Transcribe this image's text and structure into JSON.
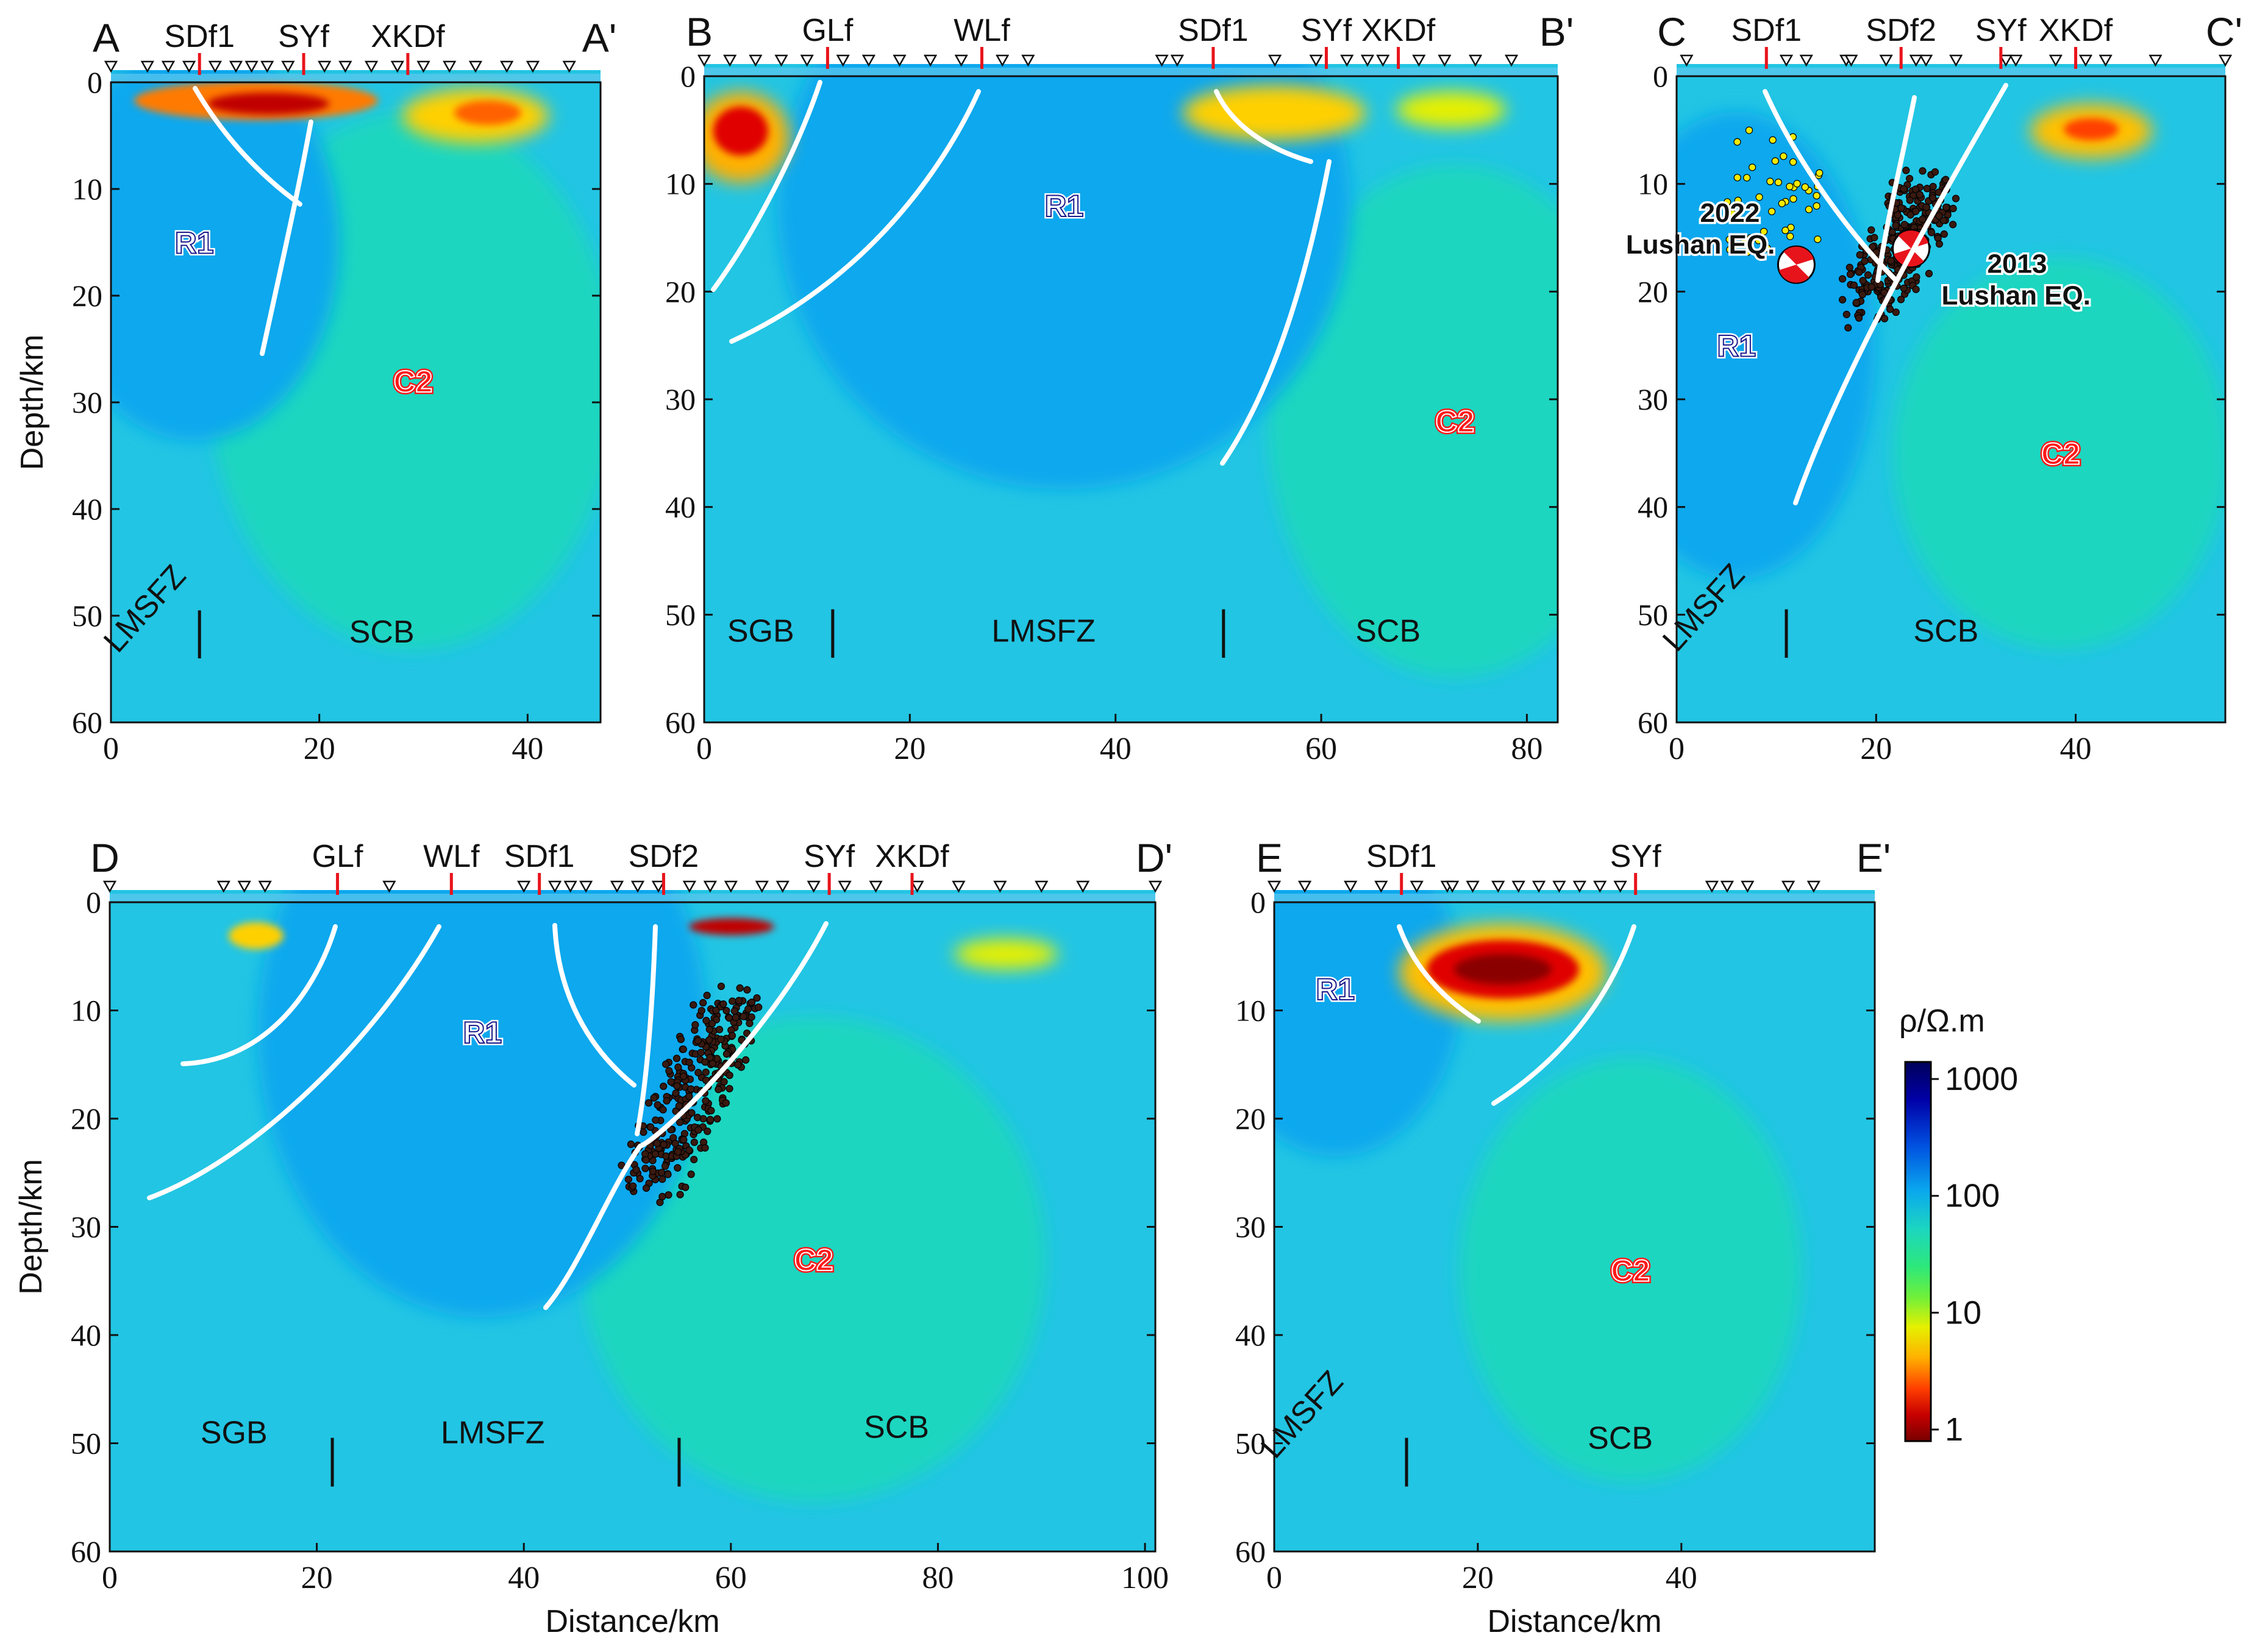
{
  "chart_data": [
    {
      "type": "heatmap",
      "title": "",
      "profile": {
        "start": "A",
        "end": "A'"
      },
      "xlim": [
        0,
        47
      ],
      "ylim": [
        60,
        0
      ],
      "xticks": [
        0,
        20,
        40
      ],
      "yticks": [
        0,
        10,
        20,
        30,
        40,
        50,
        60
      ],
      "ylabel": "Depth/km",
      "xlabel": "",
      "faults": [
        {
          "label": "SDf1",
          "x": 8.5
        },
        {
          "label": "SYf",
          "x": 18.5
        },
        {
          "label": "XKDf",
          "x": 28.5
        }
      ],
      "station_x": [
        0,
        3.5,
        5.5,
        7.5,
        10,
        12,
        13.5,
        15,
        17,
        20.5,
        22.5,
        25,
        27.5,
        30,
        32.5,
        35,
        38,
        40.5,
        44
      ],
      "anomalies": [
        {
          "label": "R1",
          "x": 8,
          "depth": 15,
          "kind": "resistive",
          "rx": 9,
          "ry": 12
        },
        {
          "label": "C2",
          "x": 29,
          "depth": 28,
          "kind": "conductive",
          "rx": 14,
          "ry": 18
        }
      ],
      "zones": [
        {
          "label": "LMSFZ",
          "x": 4,
          "depth": 50,
          "rotated": true
        },
        {
          "label": "SCB",
          "x": 26,
          "depth": 52.5
        }
      ],
      "zone_boundaries": [
        8.5
      ],
      "seismicity": [],
      "focal_mechanisms": []
    },
    {
      "type": "heatmap",
      "title": "",
      "profile": {
        "start": "B",
        "end": "B'"
      },
      "xlim": [
        0,
        83
      ],
      "ylim": [
        60,
        0
      ],
      "xticks": [
        0,
        20,
        40,
        60,
        80
      ],
      "yticks": [
        0,
        10,
        20,
        30,
        40,
        50,
        60
      ],
      "ylabel": "",
      "xlabel": "",
      "faults": [
        {
          "label": "GLf",
          "x": 12
        },
        {
          "label": "WLf",
          "x": 27
        },
        {
          "label": "SDf1",
          "x": 49.5
        },
        {
          "label": "SYf",
          "x": 60.5
        },
        {
          "label": "XKDf",
          "x": 67.5
        }
      ],
      "station_x": [
        0,
        2.5,
        5,
        7.5,
        10,
        13.5,
        16,
        19,
        22,
        25,
        29,
        31.5,
        44.5,
        46,
        55.5,
        59.5,
        62.5,
        64.5,
        66,
        69.5,
        72,
        75,
        78.5
      ],
      "anomalies": [
        {
          "label": "R1",
          "x": 35,
          "depth": 12,
          "kind": "resistive",
          "rx": 18,
          "ry": 17
        },
        {
          "label": "C2",
          "x": 73,
          "depth": 32,
          "kind": "conductive",
          "rx": 13,
          "ry": 17
        }
      ],
      "zones": [
        {
          "label": "SGB",
          "x": 5.5,
          "depth": 52.5
        },
        {
          "label": "LMSFZ",
          "x": 33,
          "depth": 52.5
        },
        {
          "label": "SCB",
          "x": 66.5,
          "depth": 52.5
        }
      ],
      "zone_boundaries": [
        12.5,
        50.5
      ],
      "seismicity": [],
      "focal_mechanisms": []
    },
    {
      "type": "heatmap",
      "title": "",
      "profile": {
        "start": "C",
        "end": "C'"
      },
      "xlim": [
        0,
        55
      ],
      "ylim": [
        60,
        0
      ],
      "xticks": [
        0,
        20,
        40
      ],
      "yticks": [
        0,
        10,
        20,
        30,
        40,
        50,
        60
      ],
      "ylabel": "",
      "xlabel": "",
      "faults": [
        {
          "label": "SDf1",
          "x": 9
        },
        {
          "label": "SDf2",
          "x": 22.5
        },
        {
          "label": "SYf",
          "x": 32.5
        },
        {
          "label": "XKDf",
          "x": 40
        }
      ],
      "station_x": [
        1,
        11,
        13,
        17,
        17.5,
        21,
        24,
        25,
        28,
        33,
        34,
        38,
        41,
        43,
        48,
        55
      ],
      "anomalies": [
        {
          "label": "R1",
          "x": 6,
          "depth": 25,
          "kind": "resistive",
          "rx": 9,
          "ry": 14
        },
        {
          "label": "C2",
          "x": 38.5,
          "depth": 35,
          "kind": "conductive",
          "rx": 12,
          "ry": 13
        }
      ],
      "zones": [
        {
          "label": "LMSFZ",
          "x": 3.5,
          "depth": 50,
          "rotated": true
        },
        {
          "label": "SCB",
          "x": 27,
          "depth": 52.5
        }
      ],
      "zone_boundaries": [
        11
      ],
      "seismicity": [
        {
          "cluster": "2013",
          "x_range": [
            15,
            28
          ],
          "depth_range": [
            8,
            21
          ]
        },
        {
          "cluster": "2022",
          "x_range": [
            5,
            15
          ],
          "depth_range": [
            5,
            17
          ]
        }
      ],
      "focal_mechanisms": [
        {
          "label": "2022 Lushan EQ.",
          "x": 12,
          "depth": 17.5
        },
        {
          "label": "2013 Lushan EQ.",
          "x": 23.5,
          "depth": 16
        }
      ]
    },
    {
      "type": "heatmap",
      "title": "",
      "profile": {
        "start": "D",
        "end": "D'"
      },
      "xlim": [
        0,
        101
      ],
      "ylim": [
        60,
        0
      ],
      "xticks": [
        0,
        20,
        40,
        60,
        80,
        100
      ],
      "yticks": [
        0,
        10,
        20,
        30,
        40,
        50,
        60
      ],
      "ylabel": "Depth/km",
      "xlabel": "Distance/km",
      "faults": [
        {
          "label": "GLf",
          "x": 22
        },
        {
          "label": "WLf",
          "x": 33
        },
        {
          "label": "SDf1",
          "x": 41.5
        },
        {
          "label": "SDf2",
          "x": 53.5
        },
        {
          "label": "SYf",
          "x": 69.5
        },
        {
          "label": "XKDf",
          "x": 77.5
        }
      ],
      "station_x": [
        0,
        11,
        13,
        15,
        27,
        40,
        43,
        44.5,
        46,
        49,
        51,
        53,
        56,
        58,
        60,
        63,
        65,
        68,
        71,
        74,
        78,
        82,
        86,
        90,
        94,
        101
      ],
      "anomalies": [
        {
          "label": "R1",
          "x": 36,
          "depth": 12,
          "kind": "resistive",
          "rx": 14,
          "ry": 17
        },
        {
          "label": "C2",
          "x": 68,
          "depth": 33,
          "kind": "conductive",
          "rx": 16,
          "ry": 16
        }
      ],
      "zones": [
        {
          "label": "SGB",
          "x": 12,
          "depth": 50
        },
        {
          "label": "LMSFZ",
          "x": 37,
          "depth": 50
        },
        {
          "label": "SCB",
          "x": 76,
          "depth": 49.5
        }
      ],
      "zone_boundaries": [
        21.5,
        55
      ],
      "seismicity": [
        {
          "cluster": "2013",
          "x_range": [
            46,
            64
          ],
          "depth_range": [
            5,
            26
          ]
        }
      ],
      "focal_mechanisms": []
    },
    {
      "type": "heatmap",
      "title": "",
      "profile": {
        "start": "E",
        "end": "E'"
      },
      "xlim": [
        0,
        59
      ],
      "ylim": [
        60,
        0
      ],
      "xticks": [
        0,
        20,
        40
      ],
      "yticks": [
        0,
        10,
        20,
        30,
        40,
        50,
        60
      ],
      "ylabel": "",
      "xlabel": "Distance/km",
      "faults": [
        {
          "label": "SDf1",
          "x": 12.5
        },
        {
          "label": "SYf",
          "x": 35.5
        }
      ],
      "station_x": [
        0,
        3,
        7.5,
        10.5,
        14,
        17,
        17.5,
        19.5,
        22,
        24,
        26,
        28,
        30,
        32,
        34,
        43,
        44.5,
        46.5,
        50.5,
        53
      ],
      "anomalies": [
        {
          "label": "R1",
          "x": 6,
          "depth": 8,
          "kind": "resistive",
          "rx": 8,
          "ry": 10
        },
        {
          "label": "C2",
          "x": 35,
          "depth": 34,
          "kind": "conductive",
          "rx": 12,
          "ry": 14
        }
      ],
      "zones": [
        {
          "label": "LMSFZ",
          "x": 3.5,
          "depth": 48,
          "rotated": true
        },
        {
          "label": "SCB",
          "x": 34,
          "depth": 50.5
        }
      ],
      "zone_boundaries": [
        13
      ],
      "seismicity": [],
      "focal_mechanisms": []
    }
  ],
  "colorbar": {
    "title": "ρ/Ω.m",
    "tick_labels": [
      "1000",
      "100",
      "10",
      "1"
    ],
    "tick_values": [
      1000,
      100,
      10,
      1
    ],
    "colors": [
      "#00005a",
      "#0000a8",
      "#0050e0",
      "#0aa8ee",
      "#1cd6c0",
      "#2de87a",
      "#6ff03a",
      "#e6f000",
      "#ffb000",
      "#ff4000",
      "#c80000",
      "#780000"
    ]
  },
  "palette": {
    "background": "#22c5e3",
    "fault_line": "#ffffff",
    "fault_marker": "#e8141c",
    "seismic_dot": "#3a1a10",
    "aftershock_dot": "#f2e900",
    "label_red": "#ff1a1a"
  }
}
